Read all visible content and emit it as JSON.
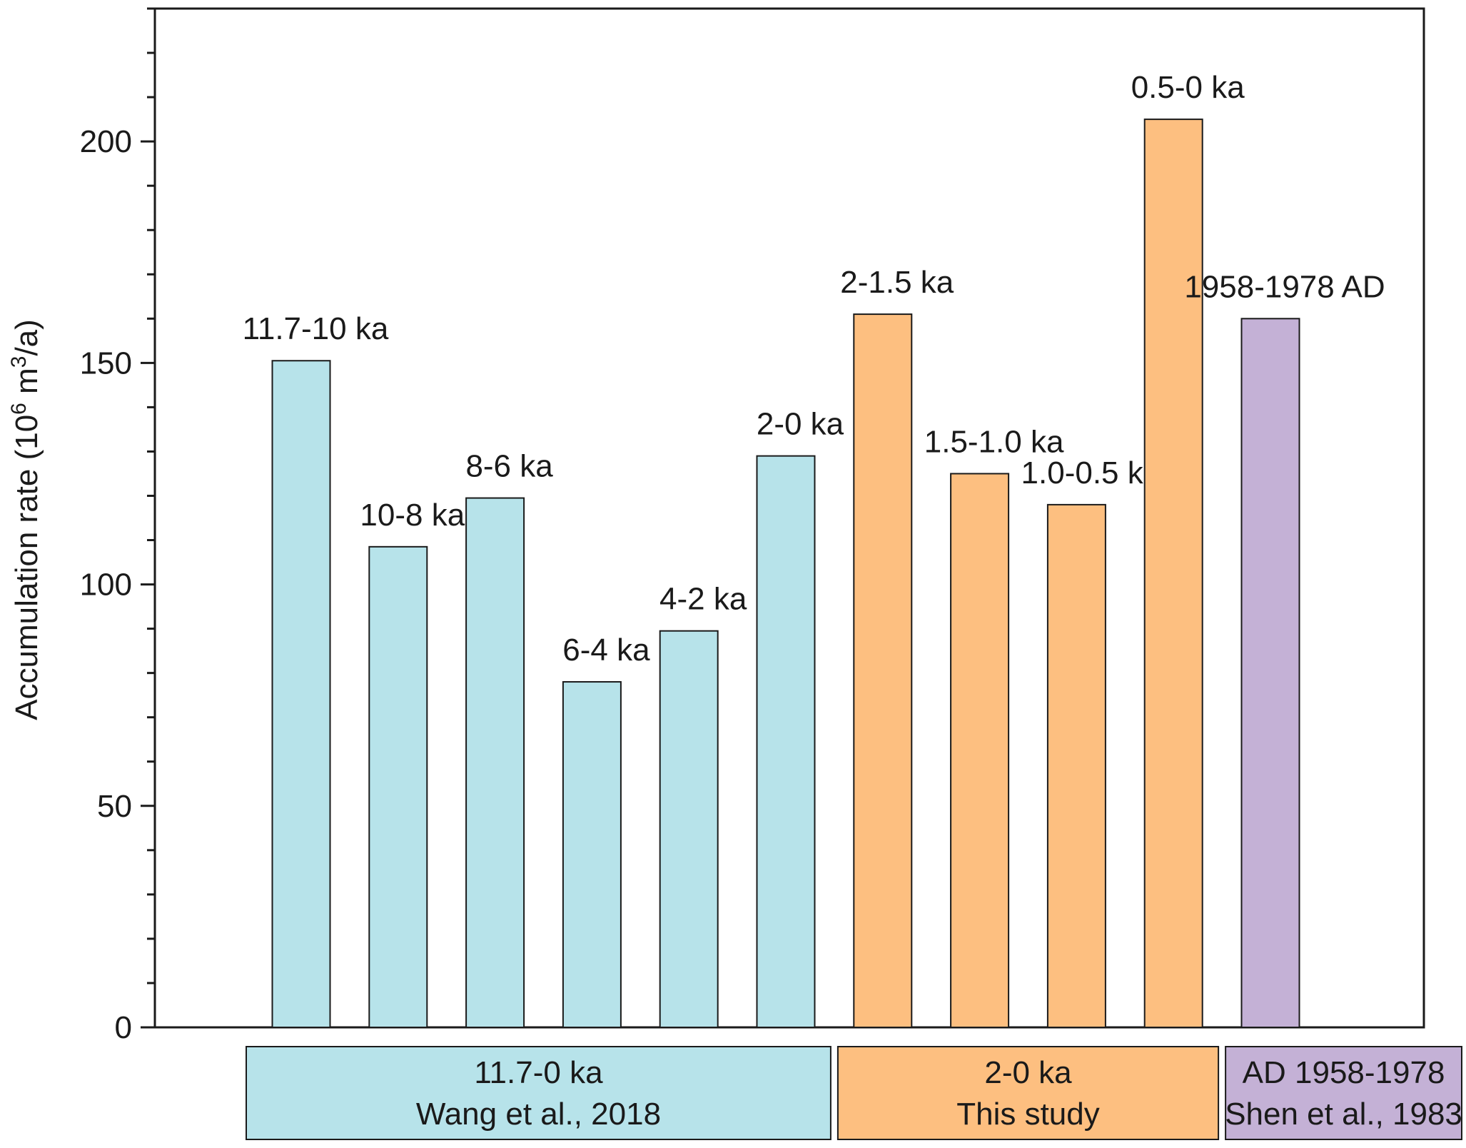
{
  "chart_data": {
    "type": "bar",
    "title": "",
    "xlabel": "",
    "ylabel": "Accumulation rate (10",
    "ylabel_sup1": "6",
    "ylabel_mid": " m",
    "ylabel_sup2": "3",
    "ylabel_end": "/a)",
    "ylim": [
      0,
      230
    ],
    "yticks": [
      0,
      50,
      100,
      150,
      200
    ],
    "minor_tick_step": 10,
    "grid": false,
    "bars": [
      {
        "label": "11.7-10 ka",
        "value": 150.5,
        "group": 0
      },
      {
        "label": "10-8 ka",
        "value": 108.5,
        "group": 0
      },
      {
        "label": "8-6 ka",
        "value": 119.5,
        "group": 0
      },
      {
        "label": "6-4 ka",
        "value": 78,
        "group": 0
      },
      {
        "label": "4-2 ka",
        "value": 89.5,
        "group": 0
      },
      {
        "label": "2-0 ka",
        "value": 129,
        "group": 0
      },
      {
        "label": "2-1.5 ka",
        "value": 161,
        "group": 1
      },
      {
        "label": "1.5-1.0 ka",
        "value": 125,
        "group": 1
      },
      {
        "label": "1.0-0.5 ka",
        "value": 118,
        "group": 1
      },
      {
        "label": "0.5-0 ka",
        "value": 205,
        "group": 1
      },
      {
        "label": "1958-1978 AD",
        "value": 160,
        "group": 2
      }
    ],
    "groups": [
      {
        "line1": "11.7-0 ka",
        "line2": "Wang et al., 2018",
        "color": "#b7e3ea"
      },
      {
        "line1": "2-0 ka",
        "line2": "This study",
        "color": "#fdbf80"
      },
      {
        "line1": "AD 1958-1978",
        "line2": "Shen et al., 1983",
        "color": "#c4b1d6"
      }
    ]
  }
}
